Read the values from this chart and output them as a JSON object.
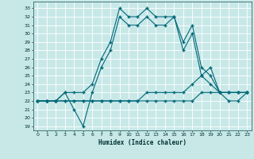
{
  "title": "",
  "xlabel": "Humidex (Indice chaleur)",
  "bg_color": "#c8e8e8",
  "grid_color": "#ffffff",
  "line_color": "#006878",
  "xlim": [
    -0.5,
    23.5
  ],
  "ylim": [
    18.5,
    33.8
  ],
  "yticks": [
    19,
    20,
    21,
    22,
    23,
    24,
    25,
    26,
    27,
    28,
    29,
    30,
    31,
    32,
    33
  ],
  "xticks": [
    0,
    1,
    2,
    3,
    4,
    5,
    6,
    7,
    8,
    9,
    10,
    11,
    12,
    13,
    14,
    15,
    16,
    17,
    18,
    19,
    20,
    21,
    22,
    23
  ],
  "curve1_x": [
    0,
    1,
    2,
    3,
    4,
    5,
    6,
    7,
    8,
    9,
    10,
    11,
    12,
    13,
    14,
    15,
    16,
    17,
    18,
    19,
    20,
    21,
    22,
    23
  ],
  "curve1_y": [
    22,
    22,
    22,
    23,
    23,
    23,
    24,
    27,
    29,
    33,
    32,
    32,
    33,
    32,
    32,
    32,
    29,
    31,
    26,
    25,
    23,
    23,
    23,
    23
  ],
  "curve2_x": [
    0,
    1,
    2,
    3,
    4,
    5,
    6,
    7,
    8,
    9,
    10,
    11,
    12,
    13,
    14,
    15,
    16,
    17,
    18,
    19,
    20,
    21,
    22,
    23
  ],
  "curve2_y": [
    22,
    22,
    22,
    23,
    21,
    19,
    23,
    26,
    28,
    32,
    31,
    31,
    32,
    31,
    31,
    32,
    28,
    30,
    25,
    24,
    23,
    22,
    22,
    23
  ],
  "curve3_x": [
    0,
    1,
    2,
    3,
    4,
    5,
    6,
    7,
    8,
    9,
    10,
    11,
    12,
    13,
    14,
    15,
    16,
    17,
    18,
    19,
    20,
    21,
    22,
    23
  ],
  "curve3_y": [
    22,
    22,
    22,
    22,
    22,
    22,
    22,
    22,
    22,
    22,
    22,
    22,
    23,
    23,
    23,
    23,
    23,
    24,
    25,
    26,
    23,
    23,
    23,
    23
  ],
  "curve4_x": [
    0,
    1,
    2,
    3,
    4,
    5,
    6,
    7,
    8,
    9,
    10,
    11,
    12,
    13,
    14,
    15,
    16,
    17,
    18,
    19,
    20,
    21,
    22,
    23
  ],
  "curve4_y": [
    22,
    22,
    22,
    22,
    22,
    22,
    22,
    22,
    22,
    22,
    22,
    22,
    22,
    22,
    22,
    22,
    22,
    22,
    23,
    23,
    23,
    23,
    23,
    23
  ]
}
